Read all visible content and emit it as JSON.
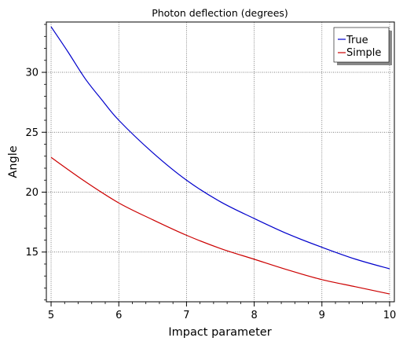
{
  "chart_data": {
    "type": "line",
    "title": "Photon deflection (degrees)",
    "xlabel": "Impact parameter",
    "ylabel": "Angle",
    "xlim": [
      4.93,
      10.07
    ],
    "ylim": [
      10.85,
      34.2
    ],
    "xticks": [
      5,
      6,
      7,
      8,
      9,
      10
    ],
    "yticks": [
      15,
      20,
      25,
      30
    ],
    "x_minor_step": 0.2,
    "y_minor_step": 1,
    "grid": true,
    "legend_position": "top-right",
    "series": [
      {
        "name": "True",
        "color": "#0000cc",
        "x": [
          5.0,
          5.25,
          5.5,
          5.75,
          6.0,
          6.5,
          7.0,
          7.5,
          8.0,
          8.5,
          9.0,
          9.5,
          10.0
        ],
        "y": [
          33.8,
          31.7,
          29.5,
          27.7,
          26.0,
          23.3,
          21.0,
          19.2,
          17.8,
          16.5,
          15.4,
          14.4,
          13.6
        ]
      },
      {
        "name": "Simple",
        "color": "#cc0000",
        "x": [
          5.0,
          5.5,
          6.0,
          6.5,
          7.0,
          7.5,
          8.0,
          8.5,
          9.0,
          9.5,
          10.0
        ],
        "y": [
          22.9,
          20.9,
          19.1,
          17.7,
          16.4,
          15.3,
          14.4,
          13.5,
          12.7,
          12.1,
          11.5
        ]
      }
    ]
  }
}
